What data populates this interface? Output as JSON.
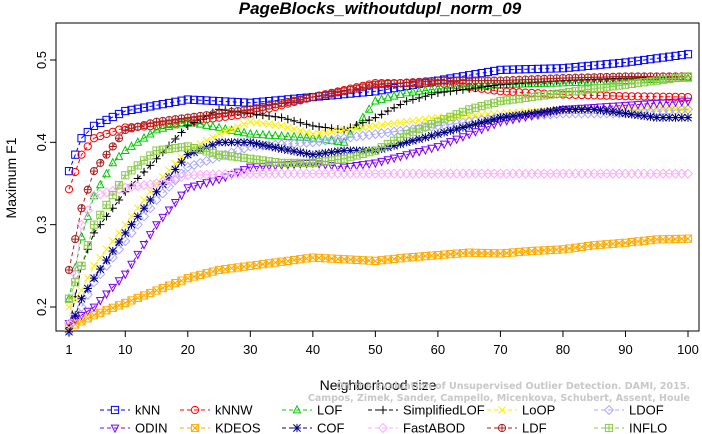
{
  "chart_data": {
    "type": "line",
    "title": "PageBlocks_withoutdupl_norm_09",
    "xlabel": "Neighborhood size",
    "ylabel": "Maximum F1",
    "xlim": [
      1,
      100
    ],
    "ylim": [
      0.16,
      0.55
    ],
    "x_ticks": [
      1,
      10,
      20,
      30,
      40,
      50,
      60,
      70,
      80,
      90,
      100
    ],
    "y_ticks": [
      0.2,
      0.3,
      0.4,
      0.5
    ],
    "x_tick_labels": [
      "1",
      "10",
      "20",
      "30",
      "40",
      "50",
      "60",
      "70",
      "80",
      "90",
      "100"
    ],
    "y_tick_labels": [
      "0.2",
      "0.3",
      "0.4",
      "0.5"
    ],
    "grid": false,
    "legend_position": "bottom",
    "series": [
      {
        "name": "kNN",
        "color": "#0000ff",
        "marker": "square",
        "x": [
          1,
          3,
          5,
          10,
          15,
          20,
          30,
          40,
          50,
          60,
          70,
          80,
          90,
          100
        ],
        "y": [
          0.365,
          0.405,
          0.42,
          0.438,
          0.445,
          0.452,
          0.448,
          0.455,
          0.462,
          0.475,
          0.488,
          0.49,
          0.497,
          0.507
        ]
      },
      {
        "name": "kNNW",
        "color": "#ff0000",
        "marker": "circle",
        "x": [
          1,
          3,
          5,
          10,
          15,
          20,
          30,
          40,
          50,
          60,
          70,
          80,
          90,
          100
        ],
        "y": [
          0.343,
          0.385,
          0.405,
          0.418,
          0.42,
          0.425,
          0.435,
          0.455,
          0.472,
          0.472,
          0.462,
          0.458,
          0.456,
          0.455
        ]
      },
      {
        "name": "LOF",
        "color": "#00cc00",
        "marker": "triangle",
        "x": [
          1,
          3,
          5,
          8,
          10,
          15,
          20,
          30,
          40,
          45,
          50,
          55,
          60,
          70,
          80,
          90,
          100
        ],
        "y": [
          0.21,
          0.285,
          0.335,
          0.375,
          0.39,
          0.415,
          0.425,
          0.41,
          0.405,
          0.4,
          0.45,
          0.46,
          0.465,
          0.47,
          0.472,
          0.475,
          0.478
        ]
      },
      {
        "name": "SimplifiedLOF",
        "color": "#000000",
        "marker": "plus",
        "x": [
          1,
          3,
          5,
          10,
          15,
          20,
          25,
          30,
          35,
          40,
          45,
          50,
          55,
          60,
          70,
          80,
          90,
          100
        ],
        "y": [
          0.175,
          0.25,
          0.29,
          0.34,
          0.38,
          0.42,
          0.44,
          0.435,
          0.43,
          0.42,
          0.415,
          0.43,
          0.45,
          0.46,
          0.47,
          0.475,
          0.478,
          0.48
        ]
      },
      {
        "name": "LoOP",
        "color": "#ffee00",
        "marker": "cross",
        "x": [
          1,
          3,
          5,
          10,
          15,
          20,
          25,
          30,
          35,
          40,
          50,
          60,
          70,
          80,
          90,
          100
        ],
        "y": [
          0.2,
          0.22,
          0.25,
          0.3,
          0.35,
          0.39,
          0.41,
          0.425,
          0.42,
          0.41,
          0.42,
          0.43,
          0.435,
          0.44,
          0.44,
          0.44
        ]
      },
      {
        "name": "LDOF",
        "color": "#aaaaff",
        "marker": "diamond",
        "x": [
          1,
          3,
          5,
          10,
          15,
          20,
          30,
          40,
          50,
          60,
          70,
          80,
          90,
          100
        ],
        "y": [
          0.17,
          0.2,
          0.23,
          0.28,
          0.33,
          0.37,
          0.395,
          0.4,
          0.41,
          0.42,
          0.43,
          0.435,
          0.435,
          0.44
        ]
      },
      {
        "name": "ODIN",
        "color": "#7f00ff",
        "marker": "triangle-down",
        "x": [
          1,
          3,
          5,
          10,
          15,
          20,
          25,
          30,
          40,
          45,
          50,
          55,
          60,
          65,
          70,
          80,
          90,
          100
        ],
        "y": [
          0.18,
          0.19,
          0.2,
          0.24,
          0.3,
          0.345,
          0.355,
          0.37,
          0.375,
          0.37,
          0.375,
          0.385,
          0.395,
          0.41,
          0.425,
          0.44,
          0.445,
          0.45
        ]
      },
      {
        "name": "KDEOS",
        "color": "#ffaa00",
        "marker": "square-x",
        "x": [
          1,
          5,
          10,
          15,
          20,
          25,
          30,
          35,
          40,
          45,
          50,
          55,
          60,
          65,
          70,
          75,
          80,
          85,
          90,
          95,
          100
        ],
        "y": [
          0.175,
          0.19,
          0.205,
          0.22,
          0.235,
          0.245,
          0.25,
          0.255,
          0.26,
          0.258,
          0.256,
          0.26,
          0.263,
          0.266,
          0.265,
          0.268,
          0.27,
          0.275,
          0.278,
          0.282,
          0.283
        ]
      },
      {
        "name": "COF",
        "color": "#000080",
        "marker": "asterisk",
        "x": [
          1,
          3,
          5,
          10,
          15,
          20,
          25,
          30,
          35,
          40,
          45,
          50,
          55,
          60,
          65,
          70,
          75,
          80,
          85,
          90,
          95,
          100
        ],
        "y": [
          0.17,
          0.21,
          0.235,
          0.29,
          0.34,
          0.385,
          0.4,
          0.4,
          0.392,
          0.385,
          0.39,
          0.39,
          0.4,
          0.41,
          0.42,
          0.43,
          0.435,
          0.44,
          0.44,
          0.435,
          0.43,
          0.43
        ]
      },
      {
        "name": "FastABOD",
        "color": "#ffaaff",
        "marker": "diamond",
        "x": [
          1,
          3,
          5,
          10,
          15,
          20,
          30,
          40,
          50,
          60,
          70,
          80,
          90,
          100
        ],
        "y": [
          0.18,
          0.3,
          0.335,
          0.345,
          0.35,
          0.36,
          0.362,
          0.362,
          0.362,
          0.362,
          0.362,
          0.362,
          0.362,
          0.362
        ]
      },
      {
        "name": "LDF",
        "color": "#aa2222",
        "marker": "circle-plus",
        "x": [
          1,
          3,
          5,
          10,
          15,
          20,
          30,
          40,
          45,
          50,
          60,
          70,
          80,
          90,
          100
        ],
        "y": [
          0.245,
          0.32,
          0.365,
          0.415,
          0.425,
          0.43,
          0.44,
          0.455,
          0.462,
          0.47,
          0.475,
          0.475,
          0.478,
          0.48,
          0.48
        ]
      },
      {
        "name": "INFLO",
        "color": "#88cc44",
        "marker": "square-plus",
        "x": [
          1,
          3,
          5,
          10,
          15,
          20,
          25,
          30,
          35,
          40,
          45,
          50,
          55,
          60,
          65,
          70,
          75,
          80,
          85,
          90,
          95,
          100
        ],
        "y": [
          0.21,
          0.25,
          0.3,
          0.36,
          0.39,
          0.395,
          0.385,
          0.38,
          0.375,
          0.375,
          0.38,
          0.39,
          0.41,
          0.425,
          0.44,
          0.45,
          0.455,
          0.46,
          0.465,
          0.47,
          0.475,
          0.48
        ]
      }
    ]
  },
  "watermark": {
    "line1": "Campos, Zimek, Sander, Campello, Micenkova, Schubert, Assent, Houle",
    "line2": "On the Evaluation of Unsupervised Outlier Detection. DAMI, 2015."
  },
  "legend_columns": 6
}
